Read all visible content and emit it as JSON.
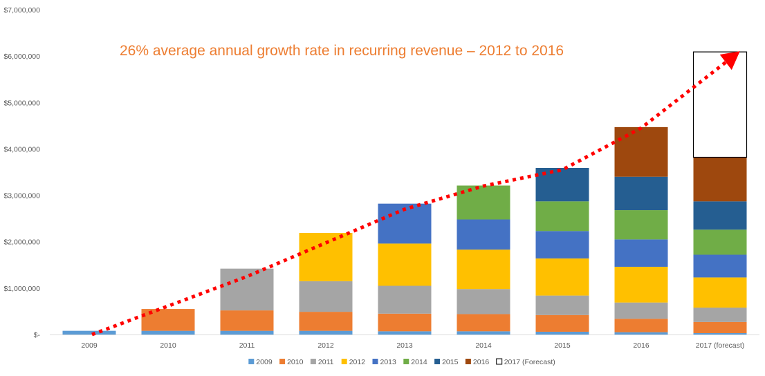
{
  "chart_data": {
    "type": "bar",
    "stacked": true,
    "title": "",
    "annotation": "26% average annual growth rate in recurring revenue – 2012 to 2016",
    "categories": [
      "2009",
      "2010",
      "2011",
      "2012",
      "2013",
      "2014",
      "2015",
      "2016",
      "2017 (forecast)"
    ],
    "y_tick_labels": [
      "$-",
      "$1,000,000",
      "$2,000,000",
      "$3,000,000",
      "$4,000,000",
      "$5,000,000",
      "$6,000,000",
      "$7,000,000"
    ],
    "ylim": [
      0,
      7000000
    ],
    "grid": false,
    "legend_position": "bottom",
    "series": [
      {
        "name": "2009",
        "color": "#5B9BD5",
        "values": [
          80000,
          80000,
          80000,
          80000,
          70000,
          70000,
          60000,
          50000,
          30000
        ]
      },
      {
        "name": "2010",
        "color": "#ED7D31",
        "values": [
          0,
          470000,
          440000,
          410000,
          380000,
          370000,
          360000,
          290000,
          240000
        ]
      },
      {
        "name": "2011",
        "color": "#A5A5A5",
        "values": [
          0,
          0,
          900000,
          660000,
          600000,
          540000,
          420000,
          350000,
          310000
        ]
      },
      {
        "name": "2012",
        "color": "#FFC000",
        "values": [
          0,
          0,
          0,
          1040000,
          910000,
          850000,
          800000,
          770000,
          650000
        ]
      },
      {
        "name": "2013",
        "color": "#4472C4",
        "values": [
          0,
          0,
          0,
          0,
          860000,
          650000,
          590000,
          590000,
          490000
        ]
      },
      {
        "name": "2014",
        "color": "#70AD47",
        "values": [
          0,
          0,
          0,
          0,
          0,
          730000,
          640000,
          630000,
          540000
        ]
      },
      {
        "name": "2015",
        "color": "#255E91",
        "values": [
          0,
          0,
          0,
          0,
          0,
          0,
          720000,
          720000,
          610000
        ]
      },
      {
        "name": "2016",
        "color": "#9E480E",
        "values": [
          0,
          0,
          0,
          0,
          0,
          0,
          0,
          1070000,
          950000
        ]
      },
      {
        "name": "2017 (Forecast)",
        "color": "#FFFFFF",
        "outline": "#000000",
        "values": [
          0,
          0,
          0,
          0,
          0,
          0,
          0,
          0,
          2270000
        ]
      }
    ],
    "trend_arrow": {
      "style": "dotted",
      "color": "#FF0000",
      "points": [
        {
          "x": "2009",
          "y": 0
        },
        {
          "x": "2011",
          "y": 1250000
        },
        {
          "x": "2013",
          "y": 2700000
        },
        {
          "x": "2014",
          "y": 3200000
        },
        {
          "x": "2015",
          "y": 3550000
        },
        {
          "x": "2016",
          "y": 4450000
        },
        {
          "x": "2017 (forecast)",
          "y": 6050000
        }
      ]
    }
  }
}
